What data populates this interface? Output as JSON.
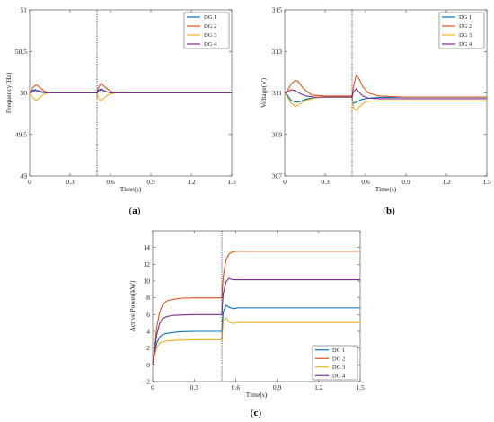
{
  "colors": [
    "#0072BD",
    "#D95319",
    "#EDB120",
    "#7E2F8E"
  ],
  "panel_labels": [
    "a",
    "b",
    "c"
  ],
  "chart_data": [
    {
      "type": "line",
      "panel": "a",
      "xlabel": "Time(s)",
      "ylabel": "Frequency(Hz)",
      "xlim": [
        0,
        1.5
      ],
      "ylim": [
        49,
        51
      ],
      "xticks": [
        0,
        0.3,
        0.6,
        0.9,
        1.2,
        1.5
      ],
      "xtick_labels": [
        "0",
        "0.3",
        "0.6",
        "0.9",
        "1.2",
        "1.5"
      ],
      "yticks": [
        49,
        49.5,
        50,
        50.5,
        51
      ],
      "ytick_labels": [
        "49",
        "49.5",
        "50",
        "50.5",
        "51"
      ],
      "vline_x": 0.5,
      "legend_position": "top-right",
      "series": [
        {
          "name": "DG 1",
          "x": [
            0,
            0.02,
            0.04,
            0.06,
            0.08,
            0.12,
            0.2,
            0.5,
            0.51,
            0.53,
            0.55,
            0.58,
            0.62,
            0.7,
            1.5
          ],
          "y": [
            50,
            50.03,
            50.04,
            50.02,
            50.01,
            50,
            50,
            50,
            50.03,
            50.05,
            50.03,
            50.01,
            50,
            50,
            50
          ]
        },
        {
          "name": "DG 2",
          "x": [
            0,
            0.02,
            0.05,
            0.08,
            0.11,
            0.14,
            0.2,
            0.5,
            0.51,
            0.53,
            0.56,
            0.6,
            0.64,
            0.7,
            1.5
          ],
          "y": [
            50,
            50.06,
            50.1,
            50.06,
            50.02,
            50,
            50,
            50,
            50.06,
            50.12,
            50.07,
            50.02,
            50,
            50,
            50
          ]
        },
        {
          "name": "DG 3",
          "x": [
            0,
            0.02,
            0.05,
            0.08,
            0.11,
            0.14,
            0.2,
            0.5,
            0.51,
            0.53,
            0.56,
            0.6,
            0.64,
            0.7,
            1.5
          ],
          "y": [
            50,
            49.95,
            49.91,
            49.95,
            49.99,
            50,
            50,
            50,
            49.94,
            49.9,
            49.95,
            49.99,
            50,
            50,
            50
          ]
        },
        {
          "name": "DG 4",
          "x": [
            0,
            0.02,
            0.05,
            0.08,
            0.12,
            0.2,
            0.5,
            0.51,
            0.53,
            0.56,
            0.6,
            0.7,
            1.5
          ],
          "y": [
            50,
            50.02,
            50.03,
            50.02,
            50,
            50,
            50,
            50.02,
            50.04,
            50.02,
            50,
            50,
            50
          ]
        }
      ]
    },
    {
      "type": "line",
      "panel": "b",
      "xlabel": "Time(s)",
      "ylabel": "Voltage(V)",
      "xlim": [
        0,
        1.5
      ],
      "ylim": [
        307,
        315
      ],
      "xticks": [
        0,
        0.3,
        0.6,
        0.9,
        1.2,
        1.5
      ],
      "xtick_labels": [
        "0",
        "0.3",
        "0.6",
        "0.9",
        "1.2",
        "1.5"
      ],
      "yticks": [
        307,
        309,
        311,
        313,
        315
      ],
      "ytick_labels": [
        "307",
        "309",
        "311",
        "313",
        "315"
      ],
      "vline_x": 0.5,
      "legend_position": "top-right",
      "series": [
        {
          "name": "DG 1",
          "x": [
            0,
            0.02,
            0.04,
            0.06,
            0.09,
            0.12,
            0.16,
            0.2,
            0.3,
            0.5,
            0.51,
            0.53,
            0.55,
            0.58,
            0.62,
            0.7,
            0.9,
            1.5
          ],
          "y": [
            311,
            310.9,
            310.7,
            310.6,
            310.55,
            310.6,
            310.7,
            310.75,
            310.8,
            310.8,
            310.5,
            310.55,
            310.62,
            310.7,
            310.75,
            310.78,
            310.8,
            310.8
          ]
        },
        {
          "name": "DG 2",
          "x": [
            0,
            0.02,
            0.05,
            0.08,
            0.1,
            0.14,
            0.2,
            0.3,
            0.5,
            0.51,
            0.53,
            0.55,
            0.58,
            0.62,
            0.7,
            0.9,
            1.5
          ],
          "y": [
            311,
            311.1,
            311.45,
            311.6,
            311.55,
            311.2,
            310.9,
            310.85,
            310.85,
            311.3,
            311.85,
            311.7,
            311.3,
            311,
            310.85,
            310.8,
            310.8
          ]
        },
        {
          "name": "DG 3",
          "x": [
            0,
            0.02,
            0.05,
            0.08,
            0.12,
            0.16,
            0.22,
            0.3,
            0.5,
            0.51,
            0.53,
            0.55,
            0.58,
            0.62,
            0.7,
            0.9,
            1.5
          ],
          "y": [
            311,
            310.8,
            310.5,
            310.35,
            310.5,
            310.65,
            310.75,
            310.8,
            310.8,
            310.3,
            310.15,
            310.3,
            310.5,
            310.6,
            310.62,
            310.62,
            310.62
          ]
        },
        {
          "name": "DG 4",
          "x": [
            0,
            0.02,
            0.05,
            0.08,
            0.12,
            0.16,
            0.22,
            0.3,
            0.5,
            0.51,
            0.53,
            0.55,
            0.58,
            0.62,
            0.7,
            0.9,
            1.5
          ],
          "y": [
            311,
            311.05,
            311.15,
            311.1,
            310.95,
            310.85,
            310.8,
            310.8,
            310.8,
            311.05,
            311.2,
            311.05,
            310.85,
            310.75,
            310.72,
            310.72,
            310.72
          ]
        }
      ]
    },
    {
      "type": "line",
      "panel": "c",
      "xlabel": "Time(s)",
      "ylabel": "Active Power(kW)",
      "xlim": [
        0,
        1.5
      ],
      "ylim": [
        -2,
        16
      ],
      "xticks": [
        0,
        0.3,
        0.6,
        0.9,
        1.2,
        1.5
      ],
      "xtick_labels": [
        "0",
        "0.3",
        "0.6",
        "0.9",
        "1.2",
        "1.5"
      ],
      "yticks": [
        -2,
        0,
        2,
        4,
        6,
        8,
        10,
        12,
        14
      ],
      "ytick_labels": [
        "−2",
        "0",
        "2",
        "4",
        "6",
        "8",
        "10",
        "12",
        "14"
      ],
      "vline_x": 0.5,
      "legend_position": "bottom-right",
      "series": [
        {
          "name": "DG 1",
          "x": [
            0,
            0.01,
            0.03,
            0.05,
            0.07,
            0.1,
            0.14,
            0.2,
            0.3,
            0.49,
            0.5,
            0.51,
            0.53,
            0.55,
            0.58,
            0.62,
            0.7,
            1.5
          ],
          "y": [
            0,
            1,
            2.6,
            3.3,
            3.6,
            3.75,
            3.85,
            3.95,
            4,
            4,
            4,
            6.3,
            7.1,
            6.9,
            6.7,
            6.8,
            6.8,
            6.8
          ]
        },
        {
          "name": "DG 2",
          "x": [
            0,
            0.01,
            0.03,
            0.05,
            0.07,
            0.1,
            0.14,
            0.2,
            0.3,
            0.49,
            0.5,
            0.51,
            0.53,
            0.55,
            0.58,
            0.62,
            0.7,
            1.5
          ],
          "y": [
            0,
            1.5,
            4.5,
            6.2,
            7.1,
            7.6,
            7.8,
            7.95,
            8,
            8,
            8,
            10.5,
            12.5,
            13.2,
            13.5,
            13.55,
            13.55,
            13.55
          ]
        },
        {
          "name": "DG 3",
          "x": [
            0,
            0.01,
            0.03,
            0.05,
            0.07,
            0.1,
            0.14,
            0.2,
            0.3,
            0.49,
            0.5,
            0.51,
            0.53,
            0.55,
            0.58,
            0.62,
            0.7,
            1.5
          ],
          "y": [
            0,
            0.8,
            2,
            2.6,
            2.7,
            2.85,
            2.9,
            2.95,
            3,
            3,
            3,
            5.2,
            5.6,
            5.1,
            4.95,
            5.05,
            5.05,
            5.05
          ]
        },
        {
          "name": "DG 4",
          "x": [
            0,
            0.01,
            0.03,
            0.05,
            0.07,
            0.1,
            0.14,
            0.2,
            0.3,
            0.49,
            0.5,
            0.51,
            0.53,
            0.55,
            0.58,
            0.62,
            0.7,
            1.5
          ],
          "y": [
            0,
            1.2,
            3.6,
            4.9,
            5.5,
            5.75,
            5.9,
            5.95,
            6,
            6,
            6,
            8.5,
            9.9,
            10.3,
            10.15,
            10.15,
            10.15,
            10.15
          ]
        }
      ]
    }
  ]
}
